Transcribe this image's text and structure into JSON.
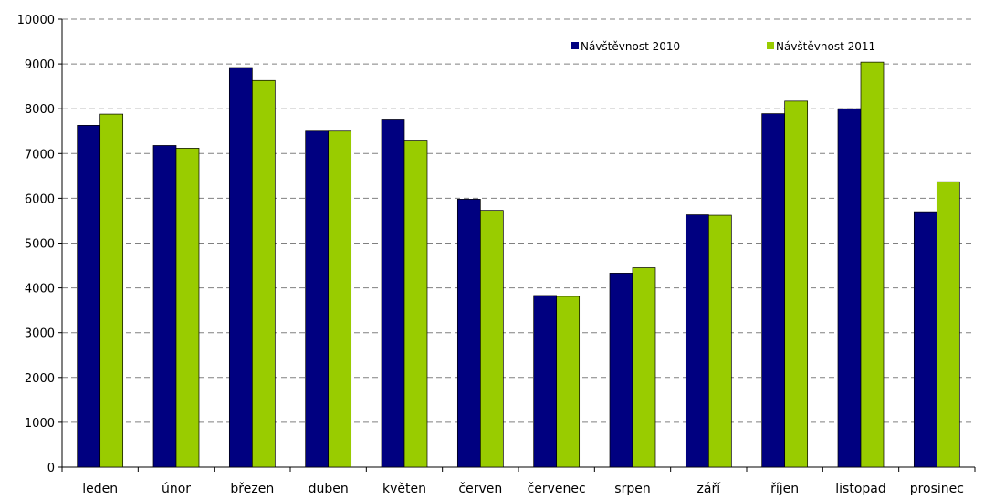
{
  "chart_data": {
    "type": "bar",
    "categories": [
      "leden",
      "únor",
      "březen",
      "duben",
      "květen",
      "červen",
      "červenec",
      "srpen",
      "září",
      "říjen",
      "listopad",
      "prosinec"
    ],
    "series": [
      {
        "name": "Návštěvnost 2010",
        "color": "#000080",
        "values": [
          7630,
          7180,
          8920,
          7500,
          7770,
          5980,
          3830,
          4330,
          5630,
          7890,
          8000,
          5700
        ]
      },
      {
        "name": "Návštěvnost 2011",
        "color": "#99CC00",
        "values": [
          7880,
          7120,
          8630,
          7500,
          7280,
          5730,
          3810,
          4450,
          5620,
          8170,
          9040,
          6370
        ]
      }
    ],
    "ylim": [
      0,
      10000
    ],
    "yticks": [
      "0",
      "1000",
      "2000",
      "3000",
      "4000",
      "5000",
      "6000",
      "7000",
      "8000",
      "9000",
      "10000"
    ],
    "grid": "horizontal dashed",
    "legend_position": "top-right",
    "title": "",
    "xlabel": "",
    "ylabel": ""
  }
}
